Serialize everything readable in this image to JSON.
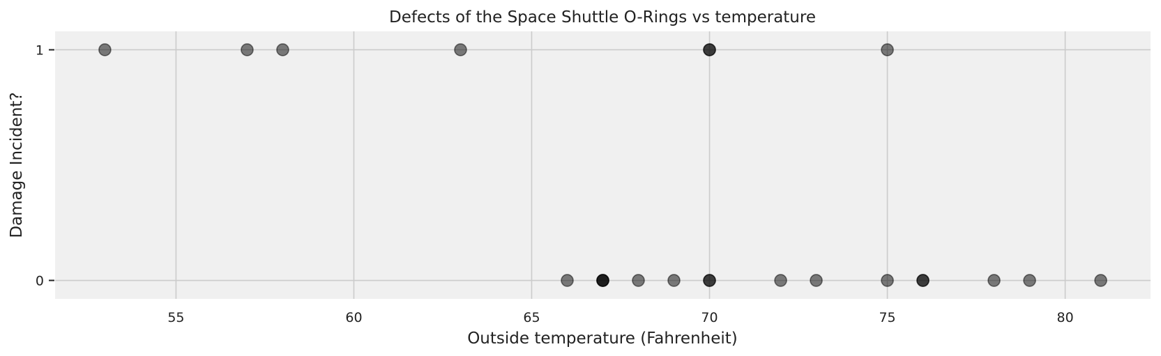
{
  "chart_data": {
    "type": "scatter",
    "title": "Defects of the Space Shuttle O-Rings vs temperature",
    "xlabel": "Outside temperature (Fahrenheit)",
    "ylabel": "Damage Incident?",
    "xlim": [
      51.6,
      82.4
    ],
    "ylim": [
      -0.08,
      1.08
    ],
    "xticks": [
      55,
      60,
      65,
      70,
      75,
      80
    ],
    "yticks": [
      0,
      1
    ],
    "grid": true,
    "legend": "none",
    "colors": {
      "background": "#f0f0f0",
      "grid": "#cbcbcb",
      "marker": "#000000",
      "marker_alpha": 0.5
    },
    "points": [
      {
        "x": 66,
        "y": 0
      },
      {
        "x": 70,
        "y": 1
      },
      {
        "x": 69,
        "y": 0
      },
      {
        "x": 68,
        "y": 0
      },
      {
        "x": 67,
        "y": 0
      },
      {
        "x": 72,
        "y": 0
      },
      {
        "x": 73,
        "y": 0
      },
      {
        "x": 70,
        "y": 0
      },
      {
        "x": 57,
        "y": 1
      },
      {
        "x": 63,
        "y": 1
      },
      {
        "x": 70,
        "y": 1
      },
      {
        "x": 78,
        "y": 0
      },
      {
        "x": 67,
        "y": 0
      },
      {
        "x": 53,
        "y": 1
      },
      {
        "x": 67,
        "y": 0
      },
      {
        "x": 75,
        "y": 0
      },
      {
        "x": 70,
        "y": 0
      },
      {
        "x": 81,
        "y": 0
      },
      {
        "x": 76,
        "y": 0
      },
      {
        "x": 79,
        "y": 0
      },
      {
        "x": 75,
        "y": 1
      },
      {
        "x": 76,
        "y": 0
      },
      {
        "x": 58,
        "y": 1
      }
    ]
  }
}
